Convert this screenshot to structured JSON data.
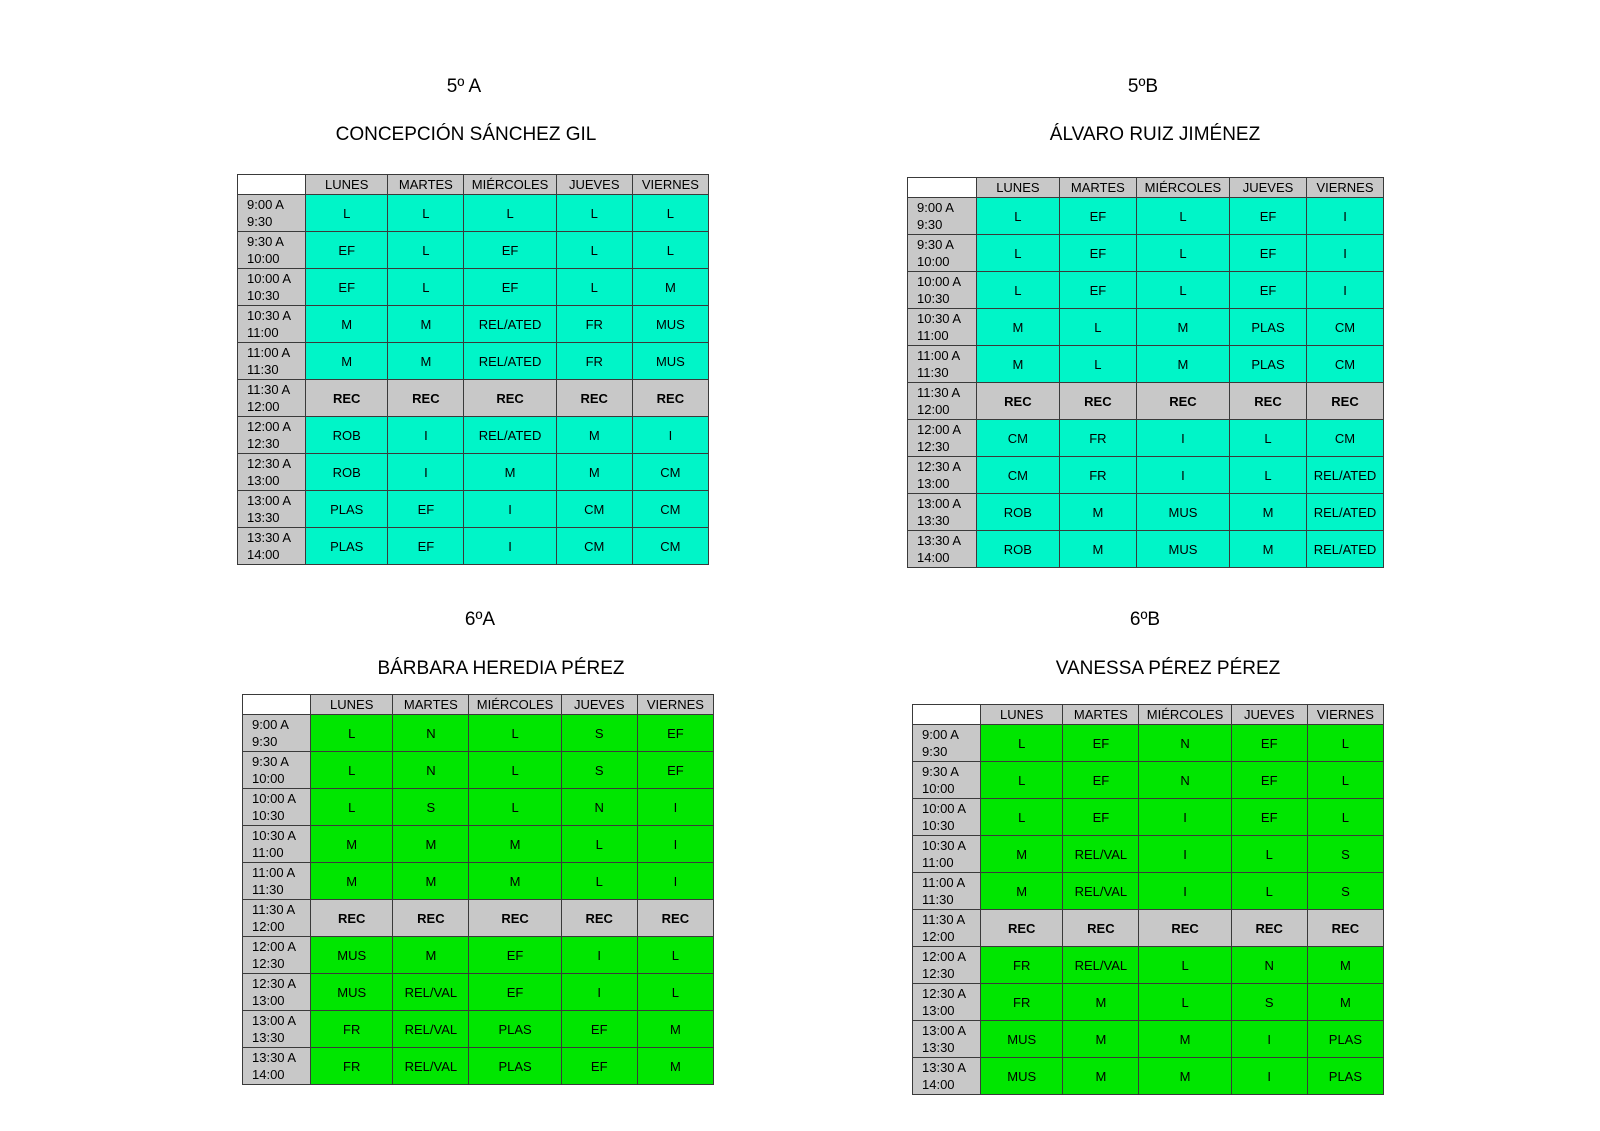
{
  "days": [
    "LUNES",
    "MARTES",
    "MIÉRCOLES",
    "JUEVES",
    "VIERNES"
  ],
  "times": [
    [
      "9:00 A",
      "9:30"
    ],
    [
      "9:30 A",
      "10:00"
    ],
    [
      "10:00 A",
      "10:30"
    ],
    [
      "10:30 A",
      "11:00"
    ],
    [
      "11:00 A",
      "11:30"
    ],
    [
      "11:30 A",
      "12:00"
    ],
    [
      "12:00 A",
      "12:30"
    ],
    [
      "12:30 A",
      "13:00"
    ],
    [
      "13:00 A",
      "13:30"
    ],
    [
      "13:30 A",
      "14:00"
    ]
  ],
  "colors": {
    "aqua": "#00f5c8",
    "green": "#00e600",
    "grey": "#c8c8c8"
  },
  "schedules": [
    {
      "group": "5º A",
      "teacher": "CONCEPCIÓN SÁNCHEZ GIL",
      "color": "aqua",
      "rows": [
        [
          "L",
          "L",
          "L",
          "L",
          "L"
        ],
        [
          "EF",
          "L",
          "EF",
          "L",
          "L"
        ],
        [
          "EF",
          "L",
          "EF",
          "L",
          "M"
        ],
        [
          "M",
          "M",
          "REL/ATED",
          "FR",
          "MUS"
        ],
        [
          "M",
          "M",
          "REL/ATED",
          "FR",
          "MUS"
        ],
        [
          "REC",
          "REC",
          "REC",
          "REC",
          "REC"
        ],
        [
          "ROB",
          "I",
          "REL/ATED",
          "M",
          "I"
        ],
        [
          "ROB",
          "I",
          "M",
          "M",
          "CM"
        ],
        [
          "PLAS",
          "EF",
          "I",
          "CM",
          "CM"
        ],
        [
          "PLAS",
          "EF",
          "I",
          "CM",
          "CM"
        ]
      ]
    },
    {
      "group": "5ºB",
      "teacher": "ÁLVARO RUIZ JIMÉNEZ",
      "color": "aqua",
      "rows": [
        [
          "L",
          "EF",
          "L",
          "EF",
          "I"
        ],
        [
          "L",
          "EF",
          "L",
          "EF",
          "I"
        ],
        [
          "L",
          "EF",
          "L",
          "EF",
          "I"
        ],
        [
          "M",
          "L",
          "M",
          "PLAS",
          "CM"
        ],
        [
          "M",
          "L",
          "M",
          "PLAS",
          "CM"
        ],
        [
          "REC",
          "REC",
          "REC",
          "REC",
          "REC"
        ],
        [
          "CM",
          "FR",
          "I",
          "L",
          "CM"
        ],
        [
          "CM",
          "FR",
          "I",
          "L",
          "REL/ATED"
        ],
        [
          "ROB",
          "M",
          "MUS",
          "M",
          "REL/ATED"
        ],
        [
          "ROB",
          "M",
          "MUS",
          "M",
          "REL/ATED"
        ]
      ]
    },
    {
      "group": "6ºA",
      "teacher": "BÁRBARA HEREDIA PÉREZ",
      "color": "green",
      "rows": [
        [
          "L",
          "N",
          "L",
          "S",
          "EF"
        ],
        [
          "L",
          "N",
          "L",
          "S",
          "EF"
        ],
        [
          "L",
          "S",
          "L",
          "N",
          "I"
        ],
        [
          "M",
          "M",
          "M",
          "L",
          "I"
        ],
        [
          "M",
          "M",
          "M",
          "L",
          "I"
        ],
        [
          "REC",
          "REC",
          "REC",
          "REC",
          "REC"
        ],
        [
          "MUS",
          "M",
          "EF",
          "I",
          "L"
        ],
        [
          "MUS",
          "REL/VAL",
          "EF",
          "I",
          "L"
        ],
        [
          "FR",
          "REL/VAL",
          "PLAS",
          "EF",
          "M"
        ],
        [
          "FR",
          "REL/VAL",
          "PLAS",
          "EF",
          "M"
        ]
      ]
    },
    {
      "group": "6ºB",
      "teacher": "VANESSA PÉREZ PÉREZ",
      "color": "green",
      "rows": [
        [
          "L",
          "EF",
          "N",
          "EF",
          "L"
        ],
        [
          "L",
          "EF",
          "N",
          "EF",
          "L"
        ],
        [
          "L",
          "EF",
          "I",
          "EF",
          "L"
        ],
        [
          "M",
          "REL/VAL",
          "I",
          "L",
          "S"
        ],
        [
          "M",
          "REL/VAL",
          "I",
          "L",
          "S"
        ],
        [
          "REC",
          "REC",
          "REC",
          "REC",
          "REC"
        ],
        [
          "FR",
          "REL/VAL",
          "L",
          "N",
          "M"
        ],
        [
          "FR",
          "M",
          "L",
          "S",
          "M"
        ],
        [
          "MUS",
          "M",
          "M",
          "I",
          "PLAS"
        ],
        [
          "MUS",
          "M",
          "M",
          "I",
          "PLAS"
        ]
      ]
    }
  ]
}
